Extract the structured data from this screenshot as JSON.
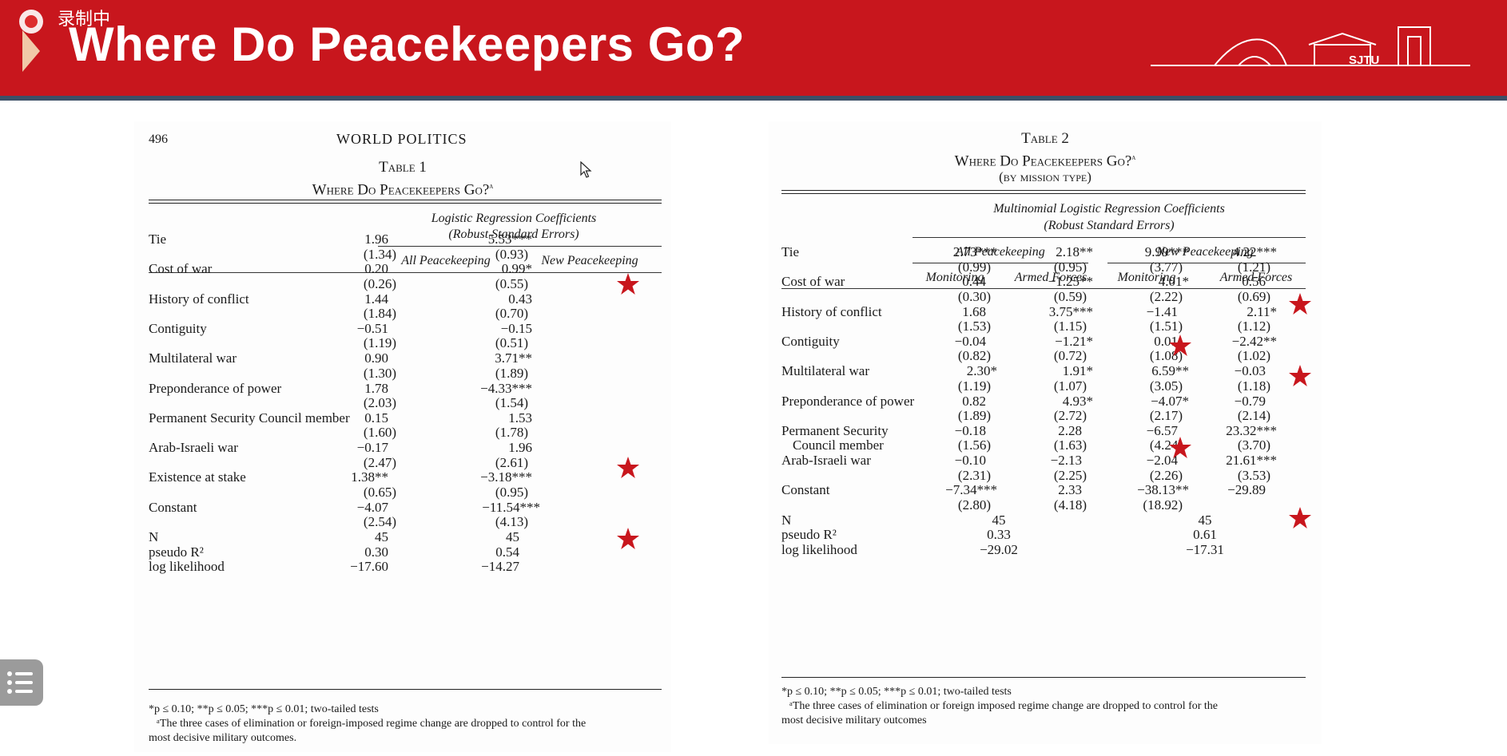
{
  "banner": {
    "title": "Where Do Peacekeepers Go?",
    "recording_label": "录制中",
    "logo_text": "SJTU",
    "colors": {
      "banner": "#c8161d",
      "stripe": "#3d4f66",
      "star": "#c8161d"
    }
  },
  "table1": {
    "page_number": "496",
    "running_head": "WORLD POLITICS",
    "table_label": "Table 1",
    "caption": "Where Do Peacekeepers Go?",
    "caption_note_mark": "a",
    "header_line1": "Logistic Regression Coefficients",
    "header_line2": "(Robust Standard Errors)",
    "col_headers": [
      "All Peacekeeping",
      "New Peacekeeping"
    ],
    "rows": [
      {
        "label": "Tie",
        "all": "1.96",
        "all_se": "(1.34)",
        "new": "5.53***",
        "new_se": "(0.93)",
        "star": true
      },
      {
        "label": "Cost of war",
        "all": "0.20",
        "all_se": "(0.26)",
        "new": "0.99*",
        "new_se": "(0.55)",
        "star": false
      },
      {
        "label": "History of conflict",
        "all": "1.44",
        "all_se": "(1.84)",
        "new": "0.43",
        "new_se": "(0.70)",
        "star": false
      },
      {
        "label": "Contiguity",
        "all": "−0.51",
        "all_se": "(1.19)",
        "new": "−0.15",
        "new_se": "(0.51)",
        "star": false
      },
      {
        "label": "Multilateral war",
        "all": "0.90",
        "all_se": "(1.30)",
        "new": "3.71**",
        "new_se": "(1.89)",
        "star": false
      },
      {
        "label": "Preponderance of power",
        "all": "1.78",
        "all_se": "(2.03)",
        "new": "−4.33***",
        "new_se": "(1.54)",
        "star": true
      },
      {
        "label": "Permanent Security Council member",
        "all": "0.15",
        "all_se": "(1.60)",
        "new": "1.53",
        "new_se": "(1.78)",
        "star": false
      },
      {
        "label": "Arab-Israeli war",
        "all": "−0.17",
        "all_se": "(2.47)",
        "new": "1.96",
        "new_se": "(2.61)",
        "star": true
      },
      {
        "label": "Existence at stake",
        "all": "1.38**",
        "all_se": "(0.65)",
        "new": "−3.18***",
        "new_se": "(0.95)",
        "star": false
      },
      {
        "label": "Constant",
        "all": "−4.07",
        "all_se": "(2.54)",
        "new": "−11.54***",
        "new_se": "(4.13)",
        "star": false
      }
    ],
    "stats": [
      {
        "label": "N",
        "all": "45",
        "new": "45"
      },
      {
        "label": "pseudo R²",
        "all": "0.30",
        "new": "0.54"
      },
      {
        "label": "log likelihood",
        "all": "−17.60",
        "new": "−14.27"
      }
    ],
    "footnote1": "*p ≤ 0.10; **p ≤ 0.05; ***p ≤ 0.01; two-tailed tests",
    "footnote2": "ᵃThe three cases of elimination or foreign-imposed regime change are dropped to control for the",
    "footnote3": "most decisive military outcomes."
  },
  "table2": {
    "table_label": "Table 2",
    "caption": "Where Do Peacekeepers Go?",
    "caption_note_mark": "a",
    "subcaption": "(by mission type)",
    "header_line1": "Multinomial Logistic Regression Coefficients",
    "header_line2": "(Robust Standard Errors)",
    "group_headers": [
      "All Peacekeeping",
      "New Peacekeeping"
    ],
    "col_headers": [
      "Monitoring",
      "Armed Forces",
      "Monitoring",
      "Armed Forces"
    ],
    "rows": [
      {
        "label": "Tie",
        "label2": "",
        "v": [
          "2.73***",
          "2.18**",
          "9.99***",
          "4.22***"
        ],
        "se": [
          "(0.99)",
          "(0.95)",
          "(3.77)",
          "(1.21)"
        ]
      },
      {
        "label": "Cost of war",
        "label2": "",
        "v": [
          "0.44",
          "−1.25**",
          "4.01*",
          "0.56"
        ],
        "se": [
          "(0.30)",
          "(0.59)",
          "(2.22)",
          "(0.69)"
        ]
      },
      {
        "label": "History of conflict",
        "label2": "",
        "v": [
          "1.68",
          "3.75***",
          "−1.41",
          "2.11*"
        ],
        "se": [
          "(1.53)",
          "(1.15)",
          "(1.51)",
          "(1.12)"
        ]
      },
      {
        "label": "Contiguity",
        "label2": "",
        "v": [
          "−0.04",
          "−1.21*",
          "0.01",
          "−2.42**"
        ],
        "se": [
          "(0.82)",
          "(0.72)",
          "(1.08)",
          "(1.02)"
        ]
      },
      {
        "label": "Multilateral war",
        "label2": "",
        "v": [
          "2.30*",
          "1.91*",
          "6.59**",
          "−0.03"
        ],
        "se": [
          "(1.19)",
          "(1.07)",
          "(3.05)",
          "(1.18)"
        ]
      },
      {
        "label": "Preponderance of power",
        "label2": "",
        "v": [
          "0.82",
          "4.93*",
          "−4.07*",
          "−0.79"
        ],
        "se": [
          "(1.89)",
          "(2.72)",
          "(2.17)",
          "(2.14)"
        ]
      },
      {
        "label": "Permanent Security",
        "label2": "Council member",
        "v": [
          "−0.18",
          "2.28",
          "−6.57",
          "23.32***"
        ],
        "se": [
          "(1.56)",
          "(1.63)",
          "(4.24)",
          "(3.70)"
        ]
      },
      {
        "label": "Arab-Israeli war",
        "label2": "",
        "v": [
          "−0.10",
          "−2.13",
          "−2.04",
          "21.61***"
        ],
        "se": [
          "(2.31)",
          "(2.25)",
          "(2.26)",
          "(3.53)"
        ]
      },
      {
        "label": "Constant",
        "label2": "",
        "v": [
          "−7.34***",
          "2.33",
          "−38.13**",
          "−29.89"
        ],
        "se": [
          "(2.80)",
          "(4.18)",
          "(18.92)",
          ""
        ]
      }
    ],
    "stats": [
      {
        "label": "N",
        "all": "45",
        "new": "45"
      },
      {
        "label": "pseudo R²",
        "all": "0.33",
        "new": "0.61"
      },
      {
        "label": "log likelihood",
        "all": "−29.02",
        "new": "−17.31"
      }
    ],
    "footnote1": "*p ≤ 0.10; **p ≤ 0.05; ***p ≤ 0.01; two-tailed tests",
    "footnote2": "ᵃThe three cases of elimination or foreign imposed regime change are dropped to control for the",
    "footnote3": "most decisive military outcomes"
  }
}
